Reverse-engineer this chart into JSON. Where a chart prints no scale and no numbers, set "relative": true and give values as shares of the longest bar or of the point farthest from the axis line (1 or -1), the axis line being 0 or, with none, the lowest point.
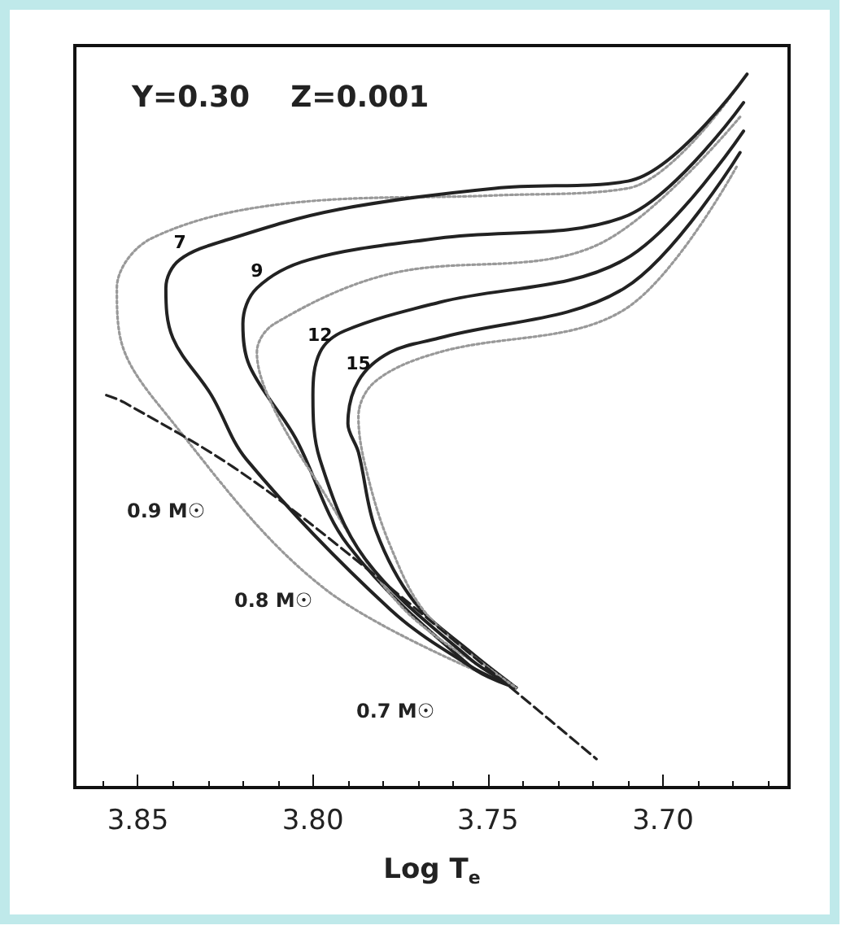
{
  "chart_data": {
    "type": "line",
    "relative": true,
    "xlabel": "Log T$_{e}$",
    "xlim": [
      3.868,
      3.664
    ],
    "xticks": [
      {
        "value": 3.85,
        "label": "3.85"
      },
      {
        "value": 3.8,
        "label": "3.80"
      },
      {
        "value": 3.75,
        "label": "3.75"
      },
      {
        "value": 3.7,
        "label": "3.70"
      }
    ],
    "legend": false,
    "grid": false,
    "marker": "none",
    "annotations": [
      "Y=0.30    Z=0.001",
      "0.9 M☉",
      "0.8 M☉",
      "0.7 M☉"
    ],
    "series": [
      {
        "color": "#999999",
        "line_style": "dotted",
        "x": [
          3.679,
          3.71,
          3.748,
          3.805,
          3.846,
          3.856,
          3.855,
          3.843,
          3.797,
          3.742
        ],
        "values": [
          0.98,
          0.84,
          0.83,
          0.82,
          0.77,
          0.7,
          0.63,
          0.53,
          0.28,
          0.14
        ]
      },
      {
        "name": "7",
        "color": "#222222",
        "line_style": "solid",
        "x": [
          3.676,
          3.71,
          3.748,
          3.793,
          3.823,
          3.838,
          3.842,
          3.84,
          3.829,
          3.819,
          3.778,
          3.755,
          3.742
        ],
        "values": [
          1.0,
          0.85,
          0.84,
          0.81,
          0.77,
          0.74,
          0.7,
          0.63,
          0.55,
          0.46,
          0.25,
          0.17,
          0.14
        ]
      },
      {
        "name": "9",
        "color": "#222222",
        "line_style": "solid",
        "x": [
          3.677,
          3.711,
          3.764,
          3.801,
          3.816,
          3.82,
          3.818,
          3.805,
          3.79,
          3.755,
          3.742
        ],
        "values": [
          0.96,
          0.8,
          0.77,
          0.74,
          0.7,
          0.65,
          0.59,
          0.49,
          0.34,
          0.17,
          0.14
        ]
      },
      {
        "color": "#999999",
        "line_style": "dotted",
        "x": [
          3.678,
          3.719,
          3.778,
          3.811,
          3.816,
          3.812,
          3.799,
          3.774,
          3.742
        ],
        "values": [
          0.94,
          0.76,
          0.72,
          0.65,
          0.61,
          0.54,
          0.43,
          0.25,
          0.14
        ]
      },
      {
        "name": "12",
        "color": "#222222",
        "line_style": "solid",
        "x": [
          3.677,
          3.711,
          3.764,
          3.791,
          3.798,
          3.8,
          3.798,
          3.785,
          3.755,
          3.742
        ],
        "values": [
          0.92,
          0.74,
          0.68,
          0.64,
          0.61,
          0.55,
          0.46,
          0.32,
          0.18,
          0.14
        ]
      },
      {
        "name": "15",
        "color": "#222222",
        "line_style": "solid",
        "x": [
          3.678,
          3.711,
          3.764,
          3.778,
          3.787,
          3.79,
          3.787,
          3.782,
          3.771,
          3.755,
          3.742
        ],
        "values": [
          0.89,
          0.7,
          0.63,
          0.61,
          0.57,
          0.51,
          0.47,
          0.36,
          0.26,
          0.19,
          0.14
        ]
      },
      {
        "color": "#999999",
        "line_style": "dotted",
        "x": [
          3.679,
          3.711,
          3.764,
          3.782,
          3.787,
          3.785,
          3.778,
          3.767,
          3.742
        ],
        "values": [
          0.87,
          0.67,
          0.61,
          0.57,
          0.52,
          0.45,
          0.34,
          0.24,
          0.14
        ]
      },
      {
        "color": "#222222",
        "line_style": "dashed",
        "x": [
          3.859,
          3.854,
          3.823,
          3.793,
          3.741,
          3.719
        ],
        "values": [
          0.55,
          0.54,
          0.45,
          0.34,
          0.13,
          0.04
        ]
      }
    ]
  }
}
